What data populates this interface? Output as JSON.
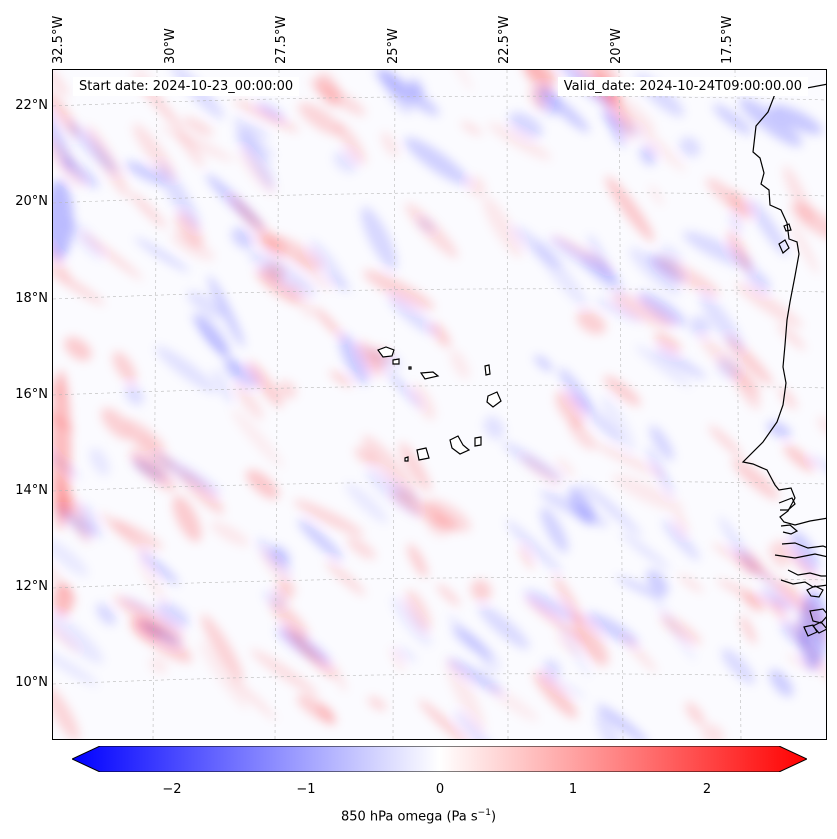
{
  "map": {
    "lon_labels": [
      "32.5°W",
      "30°W",
      "27.5°W",
      "25°W",
      "22.5°W",
      "20°W",
      "17.5°W"
    ],
    "lat_labels": [
      "22°N",
      "20°N",
      "18°N",
      "16°N",
      "14°N",
      "12°N",
      "10°N"
    ],
    "start_date": "Start date: 2024-10-23_00:00:00",
    "valid_date": "Valid_date: 2024-10-24T09:00:00.00",
    "field": "850 hPa omega",
    "colormap": "bwr",
    "extent_lon": [
      -33,
      -15.5
    ],
    "extent_lat": [
      8.8,
      22.8
    ],
    "gridlines": "dashed"
  },
  "colorbar": {
    "ticks": [
      "−2",
      "−1",
      "0",
      "1",
      "2"
    ],
    "tick_values": [
      -2,
      -1,
      0,
      1,
      2
    ],
    "range": [
      -2.6,
      2.6
    ],
    "label": "850 hPa omega (Pa s",
    "label_exp": "−1",
    "label_close": ")",
    "colors": {
      "negative": "#0000ff",
      "zero": "#ffffff",
      "positive": "#ff0000"
    }
  }
}
